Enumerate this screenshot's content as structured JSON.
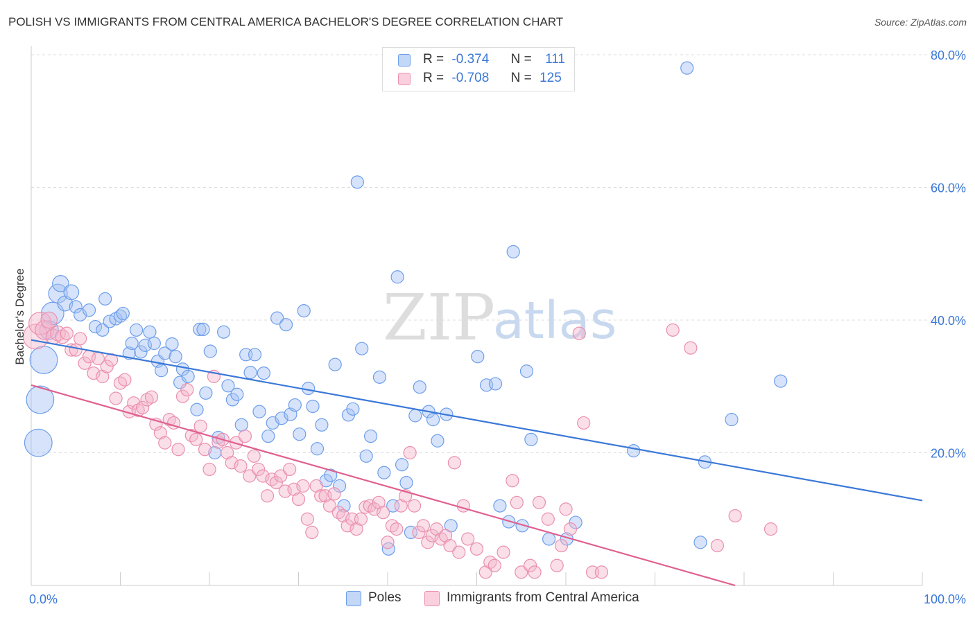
{
  "title": "POLISH VS IMMIGRANTS FROM CENTRAL AMERICA BACHELOR'S DEGREE CORRELATION CHART",
  "source": "Source: ZipAtlas.com",
  "watermark": {
    "zip": "ZIP",
    "atlas": "atlas"
  },
  "legend": {
    "rows": [
      {
        "r_label": "R =",
        "r_value": "-0.374",
        "n_label": "N =",
        "n_value": "111"
      },
      {
        "r_label": "R =",
        "r_value": "-0.708",
        "n_label": "N =",
        "n_value": "125"
      }
    ]
  },
  "chart_data": {
    "type": "scatter",
    "title": "POLISH VS IMMIGRANTS FROM CENTRAL AMERICA BACHELOR'S DEGREE CORRELATION CHART",
    "xlabel": "",
    "ylabel": "Bachelor's Degree",
    "xlim": [
      0,
      100
    ],
    "ylim": [
      0,
      80
    ],
    "x_tick_labels": [
      "0.0%",
      "100.0%"
    ],
    "y_ticks": [
      20,
      40,
      60,
      80
    ],
    "y_tick_labels": [
      "20.0%",
      "40.0%",
      "60.0%",
      "80.0%"
    ],
    "grid": true,
    "series": [
      {
        "name": "Poles",
        "color": "#a4c2f4",
        "stroke": "#6d9eeb",
        "line_color": "#3a78d8",
        "r": -0.374,
        "n": 111,
        "trend": {
          "x0": 0,
          "y0": 37.0,
          "x1": 100,
          "y1": 12.8
        },
        "points": [
          [
            0.8,
            21.5,
            2.2
          ],
          [
            1.0,
            28.0,
            2.2
          ],
          [
            1.4,
            34.0,
            2.2
          ],
          [
            2.0,
            38.5,
            1.5
          ],
          [
            2.4,
            41.0,
            1.8
          ],
          [
            3.0,
            44.0,
            1.5
          ],
          [
            3.3,
            45.5,
            1.3
          ],
          [
            3.8,
            42.5,
            1.2
          ],
          [
            4.5,
            44.2,
            1.2
          ],
          [
            5.0,
            42.0,
            1.0
          ],
          [
            5.5,
            40.8,
            1.0
          ],
          [
            6.5,
            41.5,
            1.0
          ],
          [
            7.2,
            39.0,
            1.0
          ],
          [
            8.0,
            38.5,
            1.0
          ],
          [
            8.3,
            43.2,
            1.0
          ],
          [
            8.8,
            39.8,
            1.0
          ],
          [
            9.5,
            40.2,
            1.0
          ],
          [
            10.0,
            40.6,
            1.0
          ],
          [
            10.3,
            41.0,
            1.0
          ],
          [
            11.0,
            35.0,
            1.0
          ],
          [
            11.3,
            36.5,
            1.0
          ],
          [
            11.8,
            38.5,
            1.0
          ],
          [
            12.3,
            35.2,
            1.0
          ],
          [
            12.8,
            36.2,
            1.0
          ],
          [
            13.3,
            38.2,
            1.0
          ],
          [
            13.8,
            36.5,
            1.0
          ],
          [
            14.2,
            33.8,
            1.0
          ],
          [
            14.6,
            32.4,
            1.0
          ],
          [
            15.0,
            35.0,
            1.0
          ],
          [
            15.8,
            36.4,
            1.0
          ],
          [
            16.2,
            34.5,
            1.0
          ],
          [
            16.7,
            30.6,
            1.0
          ],
          [
            17.0,
            32.6,
            1.0
          ],
          [
            17.6,
            31.5,
            1.0
          ],
          [
            18.6,
            26.5,
            1.0
          ],
          [
            18.9,
            38.6,
            1.0
          ],
          [
            19.3,
            38.6,
            1.0
          ],
          [
            19.6,
            29.0,
            1.0
          ],
          [
            20.1,
            35.3,
            1.0
          ],
          [
            20.6,
            20.0,
            1.0
          ],
          [
            21.0,
            22.3,
            1.0
          ],
          [
            21.6,
            38.2,
            1.0
          ],
          [
            22.1,
            30.1,
            1.0
          ],
          [
            22.6,
            28.0,
            1.0
          ],
          [
            23.1,
            28.8,
            1.0
          ],
          [
            23.6,
            24.2,
            1.0
          ],
          [
            24.1,
            34.8,
            1.0
          ],
          [
            24.6,
            32.1,
            1.0
          ],
          [
            25.1,
            34.8,
            1.0
          ],
          [
            25.6,
            26.2,
            1.0
          ],
          [
            26.1,
            32.0,
            1.0
          ],
          [
            26.6,
            22.5,
            1.0
          ],
          [
            27.1,
            24.5,
            1.0
          ],
          [
            27.6,
            40.3,
            1.0
          ],
          [
            28.1,
            25.2,
            1.0
          ],
          [
            28.6,
            39.3,
            1.0
          ],
          [
            29.1,
            25.8,
            1.0
          ],
          [
            29.6,
            27.2,
            1.0
          ],
          [
            30.1,
            22.8,
            1.0
          ],
          [
            30.6,
            41.4,
            1.0
          ],
          [
            31.1,
            29.7,
            1.0
          ],
          [
            31.6,
            27.0,
            1.0
          ],
          [
            32.1,
            20.6,
            1.0
          ],
          [
            32.6,
            24.2,
            1.0
          ],
          [
            33.1,
            15.8,
            1.0
          ],
          [
            33.6,
            16.6,
            1.0
          ],
          [
            34.1,
            33.3,
            1.0
          ],
          [
            34.6,
            15.0,
            1.0
          ],
          [
            35.1,
            12.0,
            1.0
          ],
          [
            35.6,
            25.7,
            1.0
          ],
          [
            36.1,
            26.6,
            1.0
          ],
          [
            36.6,
            60.8,
            1.0
          ],
          [
            37.1,
            35.7,
            1.0
          ],
          [
            37.6,
            19.5,
            1.0
          ],
          [
            38.1,
            22.5,
            1.0
          ],
          [
            39.1,
            31.4,
            1.0
          ],
          [
            39.6,
            17.0,
            1.0
          ],
          [
            40.1,
            5.5,
            1.0
          ],
          [
            40.6,
            12.0,
            1.0
          ],
          [
            41.1,
            46.5,
            1.0
          ],
          [
            41.6,
            18.2,
            1.0
          ],
          [
            42.1,
            15.5,
            1.0
          ],
          [
            42.6,
            8.0,
            1.0
          ],
          [
            43.1,
            25.6,
            1.0
          ],
          [
            43.6,
            29.9,
            1.0
          ],
          [
            44.6,
            26.2,
            1.0
          ],
          [
            45.1,
            25.0,
            1.0
          ],
          [
            45.6,
            21.8,
            1.0
          ],
          [
            46.6,
            25.8,
            1.0
          ],
          [
            47.1,
            9.0,
            1.0
          ],
          [
            50.1,
            34.5,
            1.0
          ],
          [
            51.1,
            30.2,
            1.0
          ],
          [
            52.1,
            30.4,
            1.0
          ],
          [
            52.6,
            12.0,
            1.0
          ],
          [
            53.6,
            9.6,
            1.0
          ],
          [
            54.1,
            50.3,
            1.0
          ],
          [
            55.1,
            9.0,
            1.0
          ],
          [
            55.6,
            32.3,
            1.0
          ],
          [
            56.1,
            22.0,
            1.0
          ],
          [
            58.1,
            7.0,
            1.0
          ],
          [
            60.1,
            7.0,
            1.0
          ],
          [
            61.1,
            9.5,
            1.0
          ],
          [
            67.6,
            20.3,
            1.0
          ],
          [
            73.6,
            78.0,
            1.0
          ],
          [
            75.1,
            6.5,
            1.0
          ],
          [
            75.6,
            18.6,
            1.0
          ],
          [
            78.6,
            25.0,
            1.0
          ],
          [
            84.1,
            30.8,
            1.0
          ]
        ]
      },
      {
        "name": "Immigrants from Central America",
        "color": "#f4b6cb",
        "stroke": "#ea8fae",
        "line_color": "#e0608f",
        "r": -0.708,
        "n": 125,
        "trend": {
          "x0": 0,
          "y0": 30.2,
          "x1": 79,
          "y1": 0
        },
        "points": [
          [
            0.5,
            37.5,
            2.0
          ],
          [
            1.0,
            39.5,
            1.8
          ],
          [
            1.5,
            38.5,
            1.5
          ],
          [
            2.0,
            40.0,
            1.3
          ],
          [
            2.5,
            37.5,
            1.2
          ],
          [
            3.0,
            38.0,
            1.2
          ],
          [
            3.5,
            37.5,
            1.1
          ],
          [
            4.0,
            38.0,
            1.0
          ],
          [
            4.5,
            35.5,
            1.0
          ],
          [
            5.0,
            35.5,
            1.0
          ],
          [
            5.5,
            37.2,
            1.0
          ],
          [
            6.0,
            33.5,
            1.0
          ],
          [
            6.5,
            34.5,
            1.0
          ],
          [
            7.0,
            32.0,
            1.0
          ],
          [
            7.5,
            34.2,
            1.0
          ],
          [
            8.0,
            31.5,
            1.0
          ],
          [
            8.5,
            33.0,
            1.0
          ],
          [
            9.0,
            34.0,
            1.0
          ],
          [
            9.5,
            28.2,
            1.0
          ],
          [
            10.0,
            30.5,
            1.0
          ],
          [
            10.5,
            31.0,
            1.0
          ],
          [
            11.0,
            26.2,
            1.0
          ],
          [
            11.5,
            27.5,
            1.0
          ],
          [
            12.0,
            26.4,
            1.0
          ],
          [
            12.5,
            26.8,
            1.0
          ],
          [
            13.0,
            28.0,
            1.0
          ],
          [
            13.5,
            28.4,
            1.0
          ],
          [
            14.0,
            24.3,
            1.0
          ],
          [
            14.5,
            23.0,
            1.0
          ],
          [
            15.0,
            21.5,
            1.0
          ],
          [
            15.5,
            25.0,
            1.0
          ],
          [
            16.0,
            24.5,
            1.0
          ],
          [
            16.5,
            20.5,
            1.0
          ],
          [
            17.0,
            28.5,
            1.0
          ],
          [
            17.5,
            29.5,
            1.0
          ],
          [
            18.0,
            22.6,
            1.0
          ],
          [
            18.5,
            22.0,
            1.0
          ],
          [
            19.0,
            24.0,
            1.0
          ],
          [
            19.5,
            20.5,
            1.0
          ],
          [
            20.0,
            17.5,
            1.0
          ],
          [
            20.5,
            31.5,
            1.0
          ],
          [
            21.0,
            21.6,
            1.0
          ],
          [
            21.5,
            22.0,
            1.0
          ],
          [
            22.0,
            20.0,
            1.0
          ],
          [
            22.5,
            18.5,
            1.0
          ],
          [
            23.0,
            21.5,
            1.0
          ],
          [
            23.5,
            18.0,
            1.0
          ],
          [
            24.0,
            22.5,
            1.0
          ],
          [
            24.5,
            16.5,
            1.0
          ],
          [
            25.0,
            19.5,
            1.0
          ],
          [
            25.5,
            17.5,
            1.0
          ],
          [
            26.0,
            16.5,
            1.0
          ],
          [
            26.5,
            13.5,
            1.0
          ],
          [
            27.0,
            16.0,
            1.0
          ],
          [
            27.5,
            15.5,
            1.0
          ],
          [
            28.0,
            16.5,
            1.0
          ],
          [
            28.5,
            14.2,
            1.0
          ],
          [
            29.0,
            17.5,
            1.0
          ],
          [
            29.5,
            14.5,
            1.0
          ],
          [
            30.0,
            13.0,
            1.0
          ],
          [
            30.5,
            15.0,
            1.0
          ],
          [
            31.0,
            10.0,
            1.0
          ],
          [
            31.5,
            8.0,
            1.0
          ],
          [
            32.0,
            15.0,
            1.0
          ],
          [
            32.5,
            13.5,
            1.0
          ],
          [
            33.0,
            13.5,
            1.0
          ],
          [
            33.5,
            12.0,
            1.0
          ],
          [
            34.0,
            13.8,
            1.0
          ],
          [
            34.5,
            11.0,
            1.0
          ],
          [
            35.0,
            10.5,
            1.0
          ],
          [
            35.5,
            9.0,
            1.0
          ],
          [
            36.0,
            10.0,
            1.0
          ],
          [
            36.5,
            8.5,
            1.0
          ],
          [
            37.0,
            10.0,
            1.0
          ],
          [
            37.5,
            11.8,
            1.0
          ],
          [
            38.0,
            12.0,
            1.0
          ],
          [
            38.5,
            11.5,
            1.0
          ],
          [
            39.0,
            12.5,
            1.0
          ],
          [
            39.5,
            11.0,
            1.0
          ],
          [
            40.0,
            6.5,
            1.0
          ],
          [
            40.5,
            9.0,
            1.0
          ],
          [
            41.0,
            8.5,
            1.0
          ],
          [
            41.5,
            12.0,
            1.0
          ],
          [
            42.0,
            13.5,
            1.0
          ],
          [
            42.5,
            20.0,
            1.0
          ],
          [
            43.0,
            12.0,
            1.0
          ],
          [
            43.5,
            8.0,
            1.0
          ],
          [
            44.0,
            9.0,
            1.0
          ],
          [
            44.5,
            6.5,
            1.0
          ],
          [
            45.0,
            7.5,
            1.0
          ],
          [
            45.5,
            8.5,
            1.0
          ],
          [
            46.0,
            7.0,
            1.0
          ],
          [
            46.5,
            7.5,
            1.0
          ],
          [
            47.0,
            6.0,
            1.0
          ],
          [
            47.5,
            18.5,
            1.0
          ],
          [
            48.0,
            5.0,
            1.0
          ],
          [
            48.5,
            12.0,
            1.0
          ],
          [
            49.0,
            7.0,
            1.0
          ],
          [
            50.0,
            5.5,
            1.0
          ],
          [
            51.0,
            2.0,
            1.0
          ],
          [
            51.5,
            3.5,
            1.0
          ],
          [
            52.0,
            3.0,
            1.0
          ],
          [
            53.0,
            5.0,
            1.0
          ],
          [
            54.0,
            15.8,
            1.0
          ],
          [
            54.5,
            12.5,
            1.0
          ],
          [
            55.0,
            2.0,
            1.0
          ],
          [
            56.0,
            3.0,
            1.0
          ],
          [
            56.5,
            2.0,
            1.0
          ],
          [
            57.0,
            12.5,
            1.0
          ],
          [
            58.0,
            10.0,
            1.0
          ],
          [
            59.0,
            3.0,
            1.0
          ],
          [
            59.5,
            6.0,
            1.0
          ],
          [
            60.0,
            11.5,
            1.0
          ],
          [
            60.5,
            8.5,
            1.0
          ],
          [
            61.5,
            38.0,
            1.0
          ],
          [
            62.0,
            24.5,
            1.0
          ],
          [
            63.0,
            2.0,
            1.0
          ],
          [
            64.0,
            2.0,
            1.0
          ],
          [
            72.0,
            38.5,
            1.0
          ],
          [
            74.0,
            35.8,
            1.0
          ],
          [
            77.0,
            6.0,
            1.0
          ],
          [
            79.0,
            10.5,
            1.0
          ],
          [
            83.0,
            8.5,
            1.0
          ]
        ]
      }
    ]
  }
}
